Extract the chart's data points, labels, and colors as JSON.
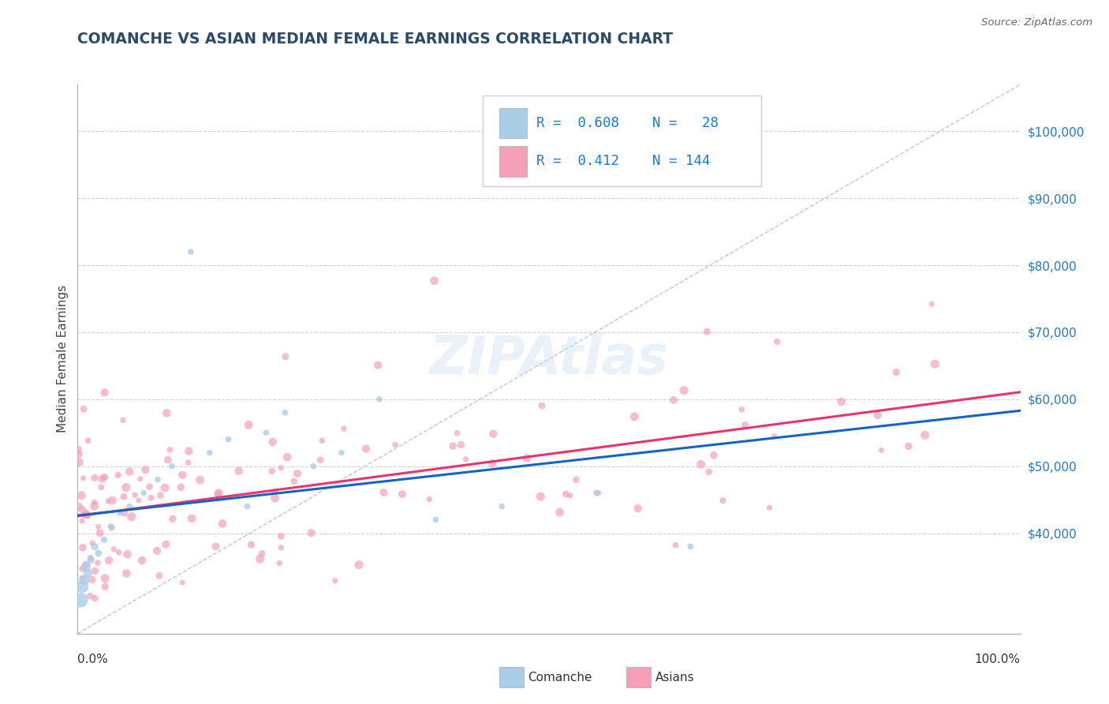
{
  "title": "COMANCHE VS ASIAN MEDIAN FEMALE EARNINGS CORRELATION CHART",
  "source": "Source: ZipAtlas.com",
  "ylabel": "Median Female Earnings",
  "title_color": "#2a4a6b",
  "title_fontsize": 13.5,
  "background_color": "#ffffff",
  "grid_color": "#cccccc",
  "comanche_color": "#aacde8",
  "asian_color": "#f4a0b8",
  "comanche_line_color": "#1565c0",
  "asian_line_color": "#e8336e",
  "ref_line_color": "#bbbbbb",
  "label_color": "#1a7ad4",
  "xmin": 0,
  "xmax": 100,
  "ymin": 25000,
  "ymax": 107000,
  "yticks": [
    40000,
    50000,
    60000,
    70000,
    80000,
    90000,
    100000
  ],
  "ytick_labels": [
    "$40,000",
    "$50,000",
    "$60,000",
    "$70,000",
    "$80,000",
    "$90,000",
    "$100,000"
  ],
  "watermark": "ZIPAtlas",
  "legend_text_1": "R = 0.608   N =  28",
  "legend_text_2": "R = 0.412   N = 144"
}
